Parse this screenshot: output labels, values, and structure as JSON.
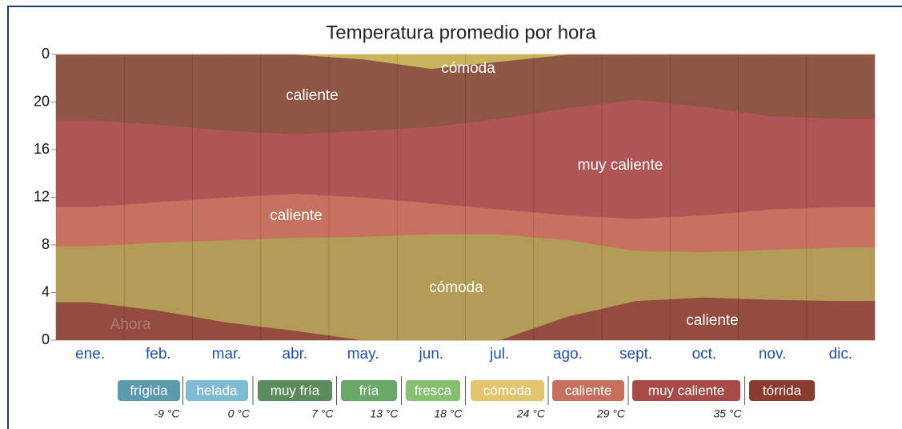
{
  "chart_data": {
    "type": "stacked_area",
    "title": "Temperatura promedio por hora",
    "categories": [
      "ene.",
      "feb.",
      "mar.",
      "abr.",
      "may.",
      "jun.",
      "jul.",
      "ago.",
      "sept.",
      "oct.",
      "nov.",
      "dic."
    ],
    "ylim": [
      0,
      24
    ],
    "yticks": [
      0,
      4,
      8,
      12,
      16,
      20,
      {
        "value": 24,
        "label": "0"
      }
    ],
    "series": [
      {
        "name": "caliente",
        "color": "#934c3f",
        "values": [
          3.2,
          2.5,
          1.5,
          0.8,
          0,
          0,
          0,
          2,
          3.3,
          3.6,
          3.4,
          3.3
        ]
      },
      {
        "name": "cómoda",
        "color": "#b39d56",
        "values": [
          4.7,
          5.7,
          6.9,
          7.8,
          8.7,
          8.9,
          8.9,
          6.4,
          4.2,
          3.8,
          4.2,
          4.5
        ]
      },
      {
        "name": "caliente",
        "color": "#c77261",
        "values": [
          3.3,
          3.4,
          3.6,
          3.7,
          3.3,
          2.6,
          2.1,
          2.1,
          2.7,
          3.1,
          3.4,
          3.4
        ]
      },
      {
        "name": "muy caliente",
        "color": "#b05556",
        "values": [
          7.3,
          6.5,
          5.6,
          5.0,
          5.6,
          6.4,
          7.6,
          9.0,
          10.0,
          9.1,
          7.8,
          7.4
        ]
      },
      {
        "name": "caliente",
        "color": "#8f5646",
        "values": [
          5.5,
          5.9,
          6.4,
          6.7,
          6.0,
          4.9,
          4.8,
          4.5,
          3.8,
          4.4,
          5.2,
          5.4
        ]
      },
      {
        "name": "cómoda",
        "color": "#c9b45c",
        "values": [
          0,
          0,
          0,
          0,
          0.4,
          1.2,
          0.6,
          0,
          0,
          0,
          0,
          0
        ]
      }
    ],
    "annotation": "Ahora",
    "legend": [
      {
        "name": "frígida",
        "color": "#5a9aae"
      },
      {
        "name": "helada",
        "color": "#7fbcd4"
      },
      {
        "name": "muy fría",
        "color": "#5c8c5c"
      },
      {
        "name": "fría",
        "color": "#6aa86a"
      },
      {
        "name": "fresca",
        "color": "#86bf6f"
      },
      {
        "name": "cómoda",
        "color": "#e3c56e"
      },
      {
        "name": "caliente",
        "color": "#c7705d"
      },
      {
        "name": "muy caliente",
        "color": "#a64b48"
      },
      {
        "name": "tórrida",
        "color": "#8a3b30"
      }
    ],
    "thresholds": [
      {
        "value": -9,
        "label": "-9 °C"
      },
      {
        "value": 0,
        "label": "0 °C"
      },
      {
        "value": 7,
        "label": "7 °C"
      },
      {
        "value": 13,
        "label": "13 °C"
      },
      {
        "value": 18,
        "label": "18 °C"
      },
      {
        "value": 24,
        "label": "24 °C"
      },
      {
        "value": 29,
        "label": "29 °C"
      },
      {
        "value": 35,
        "label": "35 °C"
      }
    ]
  }
}
